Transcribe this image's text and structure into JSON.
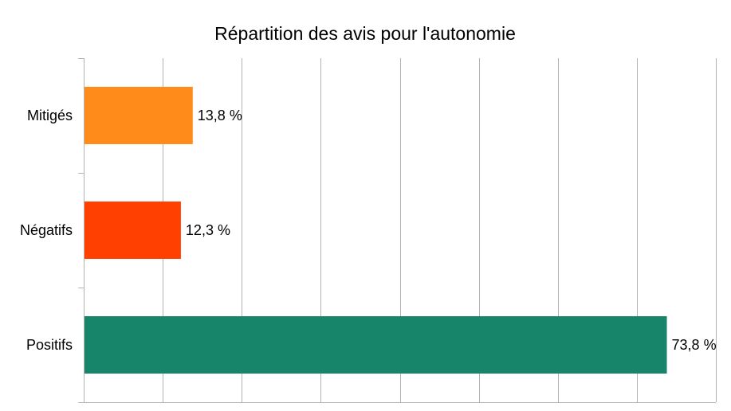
{
  "chart_data": {
    "type": "bar",
    "orientation": "horizontal",
    "title": "Répartition des avis pour l'autonomie",
    "categories": [
      "Mitigés",
      "Négatifs",
      "Positifs"
    ],
    "values": [
      13.8,
      12.3,
      73.8
    ],
    "value_labels": [
      "13,8 %",
      "12,3 %",
      "73,8 %"
    ],
    "colors": [
      "#ff8c1a",
      "#ff4000",
      "#178569"
    ],
    "xlim": [
      0,
      80
    ],
    "x_grid_step": 10,
    "grid": true,
    "legend": "none",
    "xlabel": "",
    "ylabel": ""
  }
}
